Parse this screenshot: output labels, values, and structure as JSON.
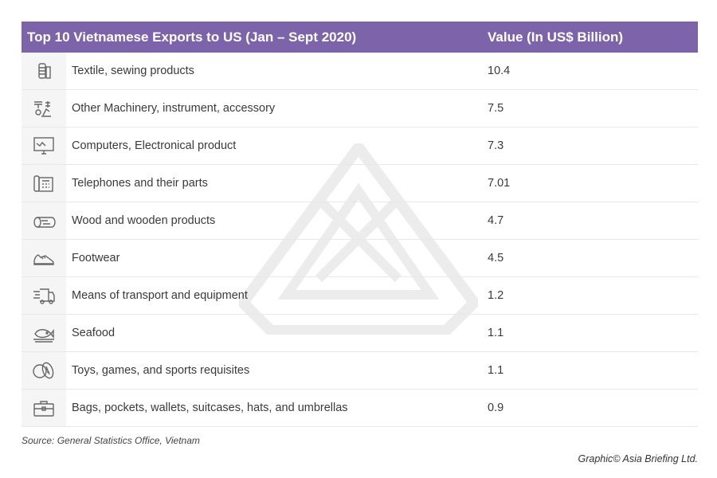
{
  "chart_data": {
    "type": "table",
    "title": "Top 10 Vietnamese Exports to US (Jan – Sept 2020)",
    "columns": [
      "Top 10 Vietnamese Exports to US (Jan – Sept 2020)",
      "Value (In US$ Billion)"
    ],
    "rows": [
      {
        "icon": "thread-spool-icon",
        "label": "Textile, sewing products",
        "value": "10.4"
      },
      {
        "icon": "robot-arm-icon",
        "label": "Other Machinery, instrument, accessory",
        "value": "7.5"
      },
      {
        "icon": "computer-monitor-icon",
        "label": "Computers, Electronical product",
        "value": "7.3"
      },
      {
        "icon": "telephone-icon",
        "label": "Telephones and their parts",
        "value": "7.01"
      },
      {
        "icon": "log-icon",
        "label": "Wood and wooden products",
        "value": "4.7"
      },
      {
        "icon": "sneaker-icon",
        "label": "Footwear",
        "value": "4.5"
      },
      {
        "icon": "delivery-truck-icon",
        "label": "Means of transport and equipment",
        "value": "1.2"
      },
      {
        "icon": "fish-platter-icon",
        "label": "Seafood",
        "value": "1.1"
      },
      {
        "icon": "balls-icon",
        "label": "Toys, games, and sports requisites",
        "value": "1.1"
      },
      {
        "icon": "briefcase-icon",
        "label": "Bags, pockets, wallets, suitcases, hats, and umbrellas",
        "value": "0.9"
      }
    ]
  },
  "source": "Source: General Statistics Office, Vietnam",
  "credit": "Graphic© Asia Briefing Ltd.",
  "colors": {
    "header": "#7c63aa",
    "icon_column": "#f5f5f5"
  }
}
